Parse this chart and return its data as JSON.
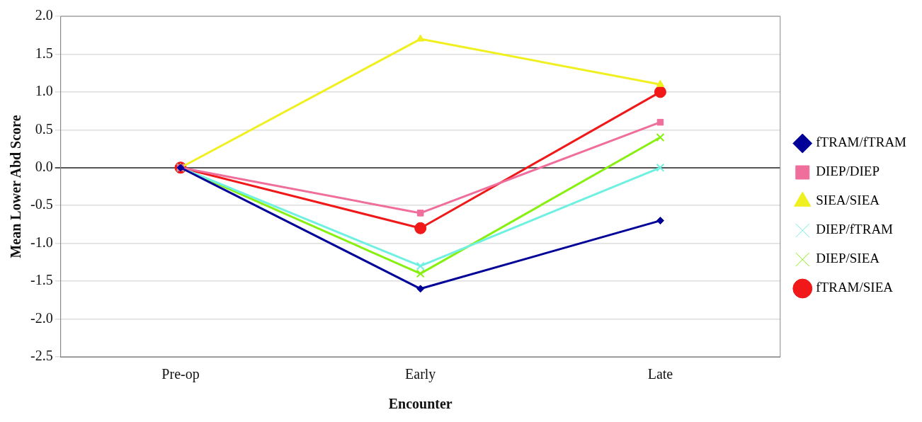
{
  "chart_data": {
    "type": "line",
    "xlabel": "Encounter",
    "ylabel": "Mean Lower Abd Score",
    "categories": [
      "Pre-op",
      "Early",
      "Late"
    ],
    "ylim": [
      -2.5,
      2.0
    ],
    "yticks": [
      {
        "value": -2.5,
        "label": "-2.5"
      },
      {
        "value": -2,
        "label": "-2.0"
      },
      {
        "value": -1.5,
        "label": "-1.5"
      },
      {
        "value": -1,
        "label": "-1.0"
      },
      {
        "value": -0.5,
        "label": "-0.5"
      },
      {
        "value": 0,
        "label": "0.0"
      },
      {
        "value": 0.5,
        "label": "0.5"
      },
      {
        "value": 1,
        "label": "1.0"
      },
      {
        "value": 1.5,
        "label": "1.5"
      },
      {
        "value": 2,
        "label": "2.0"
      }
    ],
    "grid": "y",
    "legend": "right",
    "series": [
      {
        "name": "fTRAM/fTRAM",
        "color": "#000099",
        "marker": "diamond",
        "values": [
          0,
          -1.6,
          -0.7
        ]
      },
      {
        "name": "DIEP/DIEP",
        "color": "#f06e9c",
        "marker": "square",
        "values": [
          0,
          -0.6,
          0.6
        ]
      },
      {
        "name": "SIEA/SIEA",
        "color": "#f0f020",
        "marker": "triangle",
        "values": [
          0,
          1.7,
          1.1
        ]
      },
      {
        "name": "DIEP/fTRAM",
        "color": "#70f0e0",
        "marker": "cross",
        "values": [
          0,
          -1.3,
          0
        ]
      },
      {
        "name": "DIEP/SIEA",
        "color": "#88f010",
        "marker": "cross",
        "values": [
          0,
          -1.4,
          0.4
        ]
      },
      {
        "name": "fTRAM/SIEA",
        "color": "#f01818",
        "marker": "circle",
        "values": [
          0,
          -0.8,
          1.0
        ]
      }
    ]
  }
}
